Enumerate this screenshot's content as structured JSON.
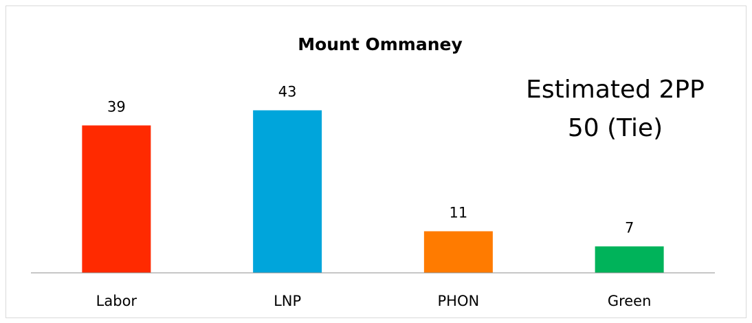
{
  "chart_data": {
    "type": "bar",
    "title": "Mount Ommaney",
    "categories": [
      "Labor",
      "LNP",
      "PHON",
      "Green"
    ],
    "values": [
      39,
      43,
      11,
      7
    ],
    "colors": [
      "#ff2a00",
      "#00a5db",
      "#ff7b00",
      "#00b35a"
    ],
    "ylim": [
      0,
      50
    ],
    "annotations": [
      "Estimated 2PP",
      "50 (Tie)"
    ]
  }
}
